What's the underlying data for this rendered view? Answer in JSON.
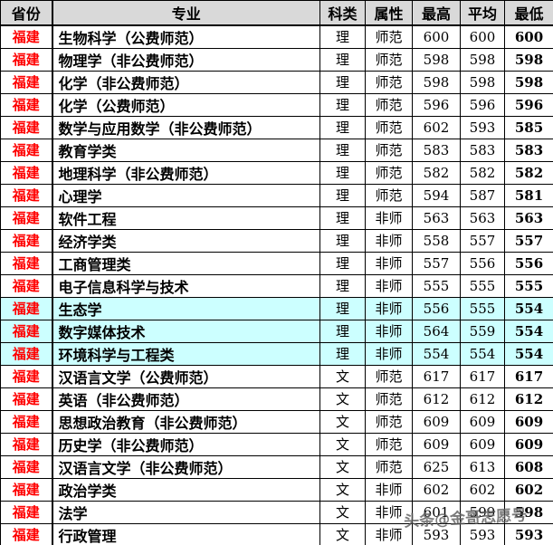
{
  "watermark": "头条@金哥志愿号",
  "colors": {
    "province_red": "#FF0000",
    "header_bg": "#D9D9D9",
    "highlight_bg": "#CCFFFF",
    "border": "#000000"
  },
  "table": {
    "headers": [
      "省份",
      "专业",
      "科类",
      "属性",
      "最高",
      "平均",
      "最低"
    ],
    "rows": [
      {
        "province": "福建",
        "major": "生物科学（公费师范）",
        "category": "理",
        "attribute": "师范",
        "max": "600",
        "avg": "600",
        "min": "600",
        "highlight": false
      },
      {
        "province": "福建",
        "major": "物理学（非公费师范）",
        "category": "理",
        "attribute": "师范",
        "max": "598",
        "avg": "598",
        "min": "598",
        "highlight": false
      },
      {
        "province": "福建",
        "major": "化学（非公费师范）",
        "category": "理",
        "attribute": "师范",
        "max": "598",
        "avg": "598",
        "min": "598",
        "highlight": false
      },
      {
        "province": "福建",
        "major": "化学（公费师范）",
        "category": "理",
        "attribute": "师范",
        "max": "596",
        "avg": "596",
        "min": "596",
        "highlight": false
      },
      {
        "province": "福建",
        "major": "数学与应用数学（非公费师范）",
        "category": "理",
        "attribute": "师范",
        "max": "602",
        "avg": "593",
        "min": "585",
        "highlight": false
      },
      {
        "province": "福建",
        "major": "教育学类",
        "category": "理",
        "attribute": "师范",
        "max": "583",
        "avg": "583",
        "min": "583",
        "highlight": false
      },
      {
        "province": "福建",
        "major": "地理科学（非公费师范）",
        "category": "理",
        "attribute": "师范",
        "max": "582",
        "avg": "582",
        "min": "582",
        "highlight": false
      },
      {
        "province": "福建",
        "major": "心理学",
        "category": "理",
        "attribute": "师范",
        "max": "594",
        "avg": "587",
        "min": "581",
        "highlight": false
      },
      {
        "province": "福建",
        "major": "软件工程",
        "category": "理",
        "attribute": "非师",
        "max": "563",
        "avg": "563",
        "min": "563",
        "highlight": false
      },
      {
        "province": "福建",
        "major": "经济学类",
        "category": "理",
        "attribute": "非师",
        "max": "558",
        "avg": "557",
        "min": "557",
        "highlight": false
      },
      {
        "province": "福建",
        "major": "工商管理类",
        "category": "理",
        "attribute": "非师",
        "max": "557",
        "avg": "556",
        "min": "556",
        "highlight": false
      },
      {
        "province": "福建",
        "major": "电子信息科学与技术",
        "category": "理",
        "attribute": "非师",
        "max": "555",
        "avg": "555",
        "min": "555",
        "highlight": false
      },
      {
        "province": "福建",
        "major": "生态学",
        "category": "理",
        "attribute": "非师",
        "max": "556",
        "avg": "555",
        "min": "554",
        "highlight": true
      },
      {
        "province": "福建",
        "major": "数字媒体技术",
        "category": "理",
        "attribute": "非师",
        "max": "564",
        "avg": "559",
        "min": "554",
        "highlight": true
      },
      {
        "province": "福建",
        "major": "环境科学与工程类",
        "category": "理",
        "attribute": "非师",
        "max": "554",
        "avg": "554",
        "min": "554",
        "highlight": true
      },
      {
        "province": "福建",
        "major": "汉语言文学（公费师范）",
        "category": "文",
        "attribute": "师范",
        "max": "617",
        "avg": "617",
        "min": "617",
        "highlight": false
      },
      {
        "province": "福建",
        "major": "英语（非公费师范）",
        "category": "文",
        "attribute": "师范",
        "max": "612",
        "avg": "612",
        "min": "612",
        "highlight": false
      },
      {
        "province": "福建",
        "major": "思想政治教育（非公费师范）",
        "category": "文",
        "attribute": "师范",
        "max": "609",
        "avg": "609",
        "min": "609",
        "highlight": false
      },
      {
        "province": "福建",
        "major": "历史学（非公费师范）",
        "category": "文",
        "attribute": "师范",
        "max": "609",
        "avg": "609",
        "min": "609",
        "highlight": false
      },
      {
        "province": "福建",
        "major": "汉语言文学（非公费师范）",
        "category": "文",
        "attribute": "师范",
        "max": "625",
        "avg": "613",
        "min": "608",
        "highlight": false
      },
      {
        "province": "福建",
        "major": "政治学类",
        "category": "文",
        "attribute": "非师",
        "max": "602",
        "avg": "602",
        "min": "602",
        "highlight": false
      },
      {
        "province": "福建",
        "major": "法学",
        "category": "文",
        "attribute": "非师",
        "max": "601",
        "avg": "599",
        "min": "598",
        "highlight": false
      },
      {
        "province": "福建",
        "major": "行政管理",
        "category": "文",
        "attribute": "非师",
        "max": "593",
        "avg": "593",
        "min": "593",
        "highlight": false
      }
    ]
  }
}
